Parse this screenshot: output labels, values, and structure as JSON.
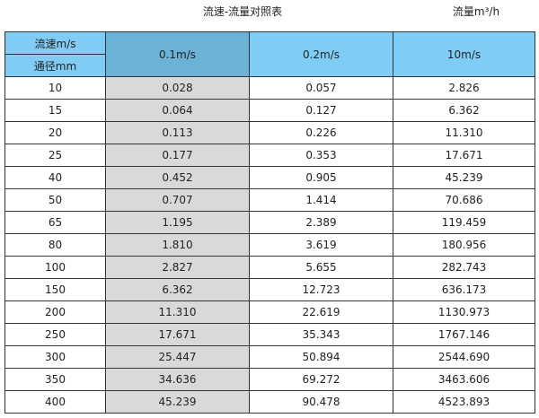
{
  "title": "流速-流量对照表",
  "unit_label": "流量m³/h",
  "header": {
    "velocity_label": "流速m/s",
    "diameter_label": "通径mm",
    "columns": [
      "0.1m/s",
      "0.2m/s",
      "10m/s"
    ]
  },
  "colors": {
    "header": "#7fcdf5",
    "header_highlight": "#6bb3d6",
    "highlight_column": "#d9d9d9"
  },
  "rows": [
    [
      "10",
      "0.028",
      "0.057",
      "2.826"
    ],
    [
      "15",
      "0.064",
      "0.127",
      "6.362"
    ],
    [
      "20",
      "0.113",
      "0.226",
      "11.310"
    ],
    [
      "25",
      "0.177",
      "0.353",
      "17.671"
    ],
    [
      "40",
      "0.452",
      "0.905",
      "45.239"
    ],
    [
      "50",
      "0.707",
      "1.414",
      "70.686"
    ],
    [
      "65",
      "1.195",
      "2.389",
      "119.459"
    ],
    [
      "80",
      "1.810",
      "3.619",
      "180.956"
    ],
    [
      "100",
      "2.827",
      "5.655",
      "282.743"
    ],
    [
      "150",
      "6.362",
      "12.723",
      "636.173"
    ],
    [
      "200",
      "11.310",
      "22.619",
      "1130.973"
    ],
    [
      "250",
      "17.671",
      "35.343",
      "1767.146"
    ],
    [
      "300",
      "25.447",
      "50.894",
      "2544.690"
    ],
    [
      "350",
      "34.636",
      "69.272",
      "3463.606"
    ],
    [
      "400",
      "45.239",
      "90.478",
      "4523.893"
    ]
  ]
}
